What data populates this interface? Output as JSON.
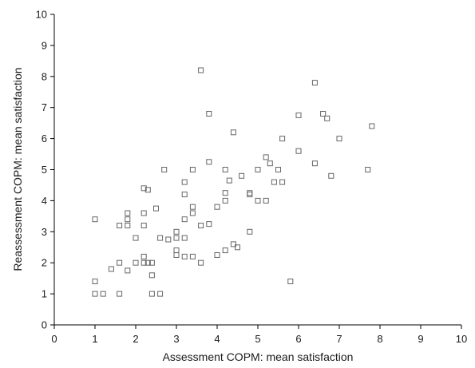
{
  "chart_data": {
    "type": "scatter",
    "xlabel": "Assessment COPM: mean satisfaction",
    "ylabel": "Reassessment COPM: mean satisfaction",
    "xlim": [
      0,
      10
    ],
    "ylim": [
      0,
      10
    ],
    "x_ticks": [
      0,
      1,
      2,
      3,
      4,
      5,
      6,
      7,
      8,
      9,
      10
    ],
    "y_ticks": [
      0,
      1,
      2,
      3,
      4,
      5,
      6,
      7,
      8,
      9,
      10
    ],
    "grid": false,
    "legend": "none",
    "marker_color": "#666666",
    "points": [
      [
        1.0,
        3.4
      ],
      [
        1.0,
        1.4
      ],
      [
        1.0,
        1.0
      ],
      [
        1.2,
        1.0
      ],
      [
        1.4,
        1.8
      ],
      [
        1.6,
        2.0
      ],
      [
        1.6,
        1.0
      ],
      [
        1.6,
        3.2
      ],
      [
        1.8,
        3.6
      ],
      [
        1.8,
        3.4
      ],
      [
        1.8,
        3.2
      ],
      [
        1.8,
        1.75
      ],
      [
        2.0,
        2.8
      ],
      [
        2.0,
        2.0
      ],
      [
        2.2,
        4.4
      ],
      [
        2.2,
        3.6
      ],
      [
        2.2,
        3.2
      ],
      [
        2.2,
        2.2
      ],
      [
        2.2,
        2.0
      ],
      [
        2.3,
        4.35
      ],
      [
        2.3,
        2.0
      ],
      [
        2.4,
        2.0
      ],
      [
        2.4,
        1.6
      ],
      [
        2.4,
        1.0
      ],
      [
        2.5,
        3.75
      ],
      [
        2.6,
        2.8
      ],
      [
        2.6,
        1.0
      ],
      [
        2.7,
        5.0
      ],
      [
        2.8,
        2.75
      ],
      [
        3.0,
        3.0
      ],
      [
        3.0,
        2.8
      ],
      [
        3.0,
        2.4
      ],
      [
        3.0,
        2.25
      ],
      [
        3.2,
        4.6
      ],
      [
        3.2,
        4.2
      ],
      [
        3.2,
        3.4
      ],
      [
        3.2,
        2.8
      ],
      [
        3.2,
        2.2
      ],
      [
        3.4,
        5.0
      ],
      [
        3.4,
        3.8
      ],
      [
        3.4,
        3.6
      ],
      [
        3.4,
        2.2
      ],
      [
        3.6,
        8.2
      ],
      [
        3.6,
        3.2
      ],
      [
        3.6,
        2.0
      ],
      [
        3.8,
        6.8
      ],
      [
        3.8,
        5.25
      ],
      [
        3.8,
        3.25
      ],
      [
        4.0,
        3.8
      ],
      [
        4.0,
        2.25
      ],
      [
        4.2,
        5.0
      ],
      [
        4.2,
        4.25
      ],
      [
        4.2,
        4.0
      ],
      [
        4.2,
        2.4
      ],
      [
        4.3,
        4.65
      ],
      [
        4.4,
        6.2
      ],
      [
        4.4,
        2.6
      ],
      [
        4.5,
        2.5
      ],
      [
        4.6,
        4.8
      ],
      [
        4.8,
        4.25
      ],
      [
        4.8,
        4.2
      ],
      [
        4.8,
        3.0
      ],
      [
        5.0,
        5.0
      ],
      [
        5.0,
        4.0
      ],
      [
        5.2,
        5.4
      ],
      [
        5.2,
        4.0
      ],
      [
        5.3,
        5.2
      ],
      [
        5.4,
        4.6
      ],
      [
        5.5,
        5.0
      ],
      [
        5.6,
        6.0
      ],
      [
        5.6,
        4.6
      ],
      [
        5.8,
        1.4
      ],
      [
        6.0,
        6.75
      ],
      [
        6.0,
        5.6
      ],
      [
        6.4,
        7.8
      ],
      [
        6.4,
        5.2
      ],
      [
        6.6,
        6.8
      ],
      [
        6.7,
        6.65
      ],
      [
        6.8,
        4.8
      ],
      [
        7.0,
        6.0
      ],
      [
        7.7,
        5.0
      ],
      [
        7.8,
        6.4
      ]
    ]
  }
}
